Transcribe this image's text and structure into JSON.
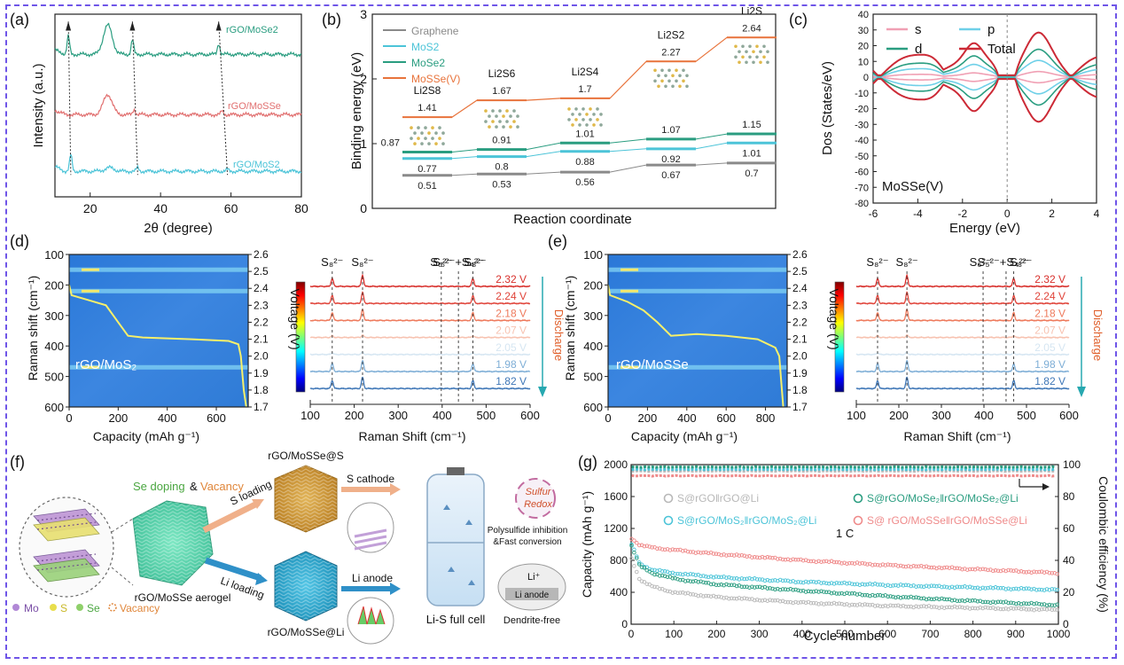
{
  "panels": {
    "a": {
      "label": "(a)",
      "chart_data": {
        "type": "line",
        "xlabel": "2θ (degree)",
        "ylabel": "Intensity (a.u.)",
        "xlim": [
          10,
          80
        ],
        "xticks": [
          20,
          40,
          60,
          80
        ],
        "series": [
          {
            "name": "rGO/MoSe2",
            "color": "#2a9d80",
            "offset": 0.78,
            "peaks": [
              [
                13.8,
                0.1
              ],
              [
                25.0,
                0.16
              ],
              [
                32.0,
                0.08
              ],
              [
                56.5,
                0.06
              ]
            ]
          },
          {
            "name": "rGO/MoSSe",
            "color": "#e17070",
            "offset": 0.45,
            "peaks": [
              [
                25.0,
                0.11
              ],
              [
                32.5,
                0.03
              ],
              [
                57.5,
                0.02
              ]
            ]
          },
          {
            "name": "rGO/MoS2",
            "color": "#4cc4d8",
            "offset": 0.14,
            "peaks": [
              [
                14.5,
                0.09
              ],
              [
                25.5,
                0.02
              ],
              [
                33.5,
                0.02
              ],
              [
                59.0,
                0.01
              ]
            ]
          }
        ],
        "dashed_shifts": [
          [
            13.8,
            14.5
          ],
          [
            32.0,
            33.5
          ],
          [
            56.5,
            59.0
          ]
        ]
      }
    },
    "b": {
      "label": "(b)",
      "chart_data": {
        "type": "line",
        "xlabel": "Reaction coordinate",
        "ylabel": "Binding energy (eV)",
        "ylim": [
          0,
          3
        ],
        "yticks": [
          0,
          1,
          2,
          3
        ],
        "categories": [
          "Li2S8",
          "Li2S6",
          "Li2S4",
          "Li2S2",
          "Li2S"
        ],
        "series": [
          {
            "name": "Graphene",
            "color": "#8a8a8a",
            "values": [
              0.51,
              0.53,
              0.56,
              0.67,
              0.7
            ]
          },
          {
            "name": "MoS2",
            "color": "#4cc4d8",
            "values": [
              0.77,
              0.8,
              0.88,
              0.92,
              1.01
            ]
          },
          {
            "name": "MoSe2",
            "color": "#2a9d80",
            "values": [
              0.87,
              0.91,
              1.01,
              1.07,
              1.15
            ]
          },
          {
            "name": "MoSSe(V)",
            "color": "#e8733b",
            "values": [
              1.41,
              1.67,
              1.7,
              2.27,
              2.64
            ]
          }
        ]
      }
    },
    "c": {
      "label": "(c)",
      "chart_data": {
        "type": "line",
        "xlabel": "Energy (eV)",
        "ylabel": "Dos (States/eV)",
        "xlim": [
          -6,
          4
        ],
        "ylim": [
          -80,
          40
        ],
        "xticks": [
          -6,
          -4,
          -2,
          0,
          2,
          4
        ],
        "yticks": [
          40,
          30,
          20,
          10,
          0,
          -10,
          -20,
          -30,
          -40,
          -50,
          -60,
          -70,
          -80
        ],
        "annotation": "MoSSe(V)",
        "series": [
          {
            "name": "s",
            "color": "#f0a0b4",
            "amp": 3
          },
          {
            "name": "p",
            "color": "#6fd0e8",
            "amp": 9
          },
          {
            "name": "d",
            "color": "#2a9d80",
            "amp": 15
          },
          {
            "name": "Total",
            "color": "#cc2a36",
            "amp": 24
          }
        ]
      }
    },
    "d": {
      "label": "(d)",
      "heatmap": {
        "ylabel": "Raman shift (cm⁻¹)",
        "xlabel": "Capacity (mAh g⁻¹)",
        "right_label": "Voltage (V)",
        "sample": "rGO/MoS₂",
        "xlim": [
          0,
          730
        ],
        "xticks": [
          0,
          200,
          400,
          600
        ],
        "ylim": [
          100,
          600
        ],
        "yticks": [
          100,
          200,
          300,
          400,
          500,
          600
        ],
        "vlim": [
          1.7,
          2.6
        ],
        "vticks": [
          2.6,
          2.5,
          2.4,
          2.3,
          2.2,
          2.1,
          2.0,
          1.9,
          1.8,
          1.7
        ],
        "curve": [
          [
            0,
            2.42
          ],
          [
            10,
            2.36
          ],
          [
            80,
            2.33
          ],
          [
            150,
            2.3
          ],
          [
            200,
            2.2
          ],
          [
            240,
            2.12
          ],
          [
            300,
            2.11
          ],
          [
            500,
            2.1
          ],
          [
            650,
            2.09
          ],
          [
            690,
            2.07
          ],
          [
            700,
            2.0
          ],
          [
            712,
            1.8
          ],
          [
            722,
            1.7
          ]
        ],
        "bands": [
          150,
          220,
          470
        ]
      },
      "spectra": {
        "xlabel": "Raman Shift (cm⁻¹)",
        "xlim": [
          100,
          600
        ],
        "xticks": [
          100,
          200,
          300,
          400,
          500,
          600
        ],
        "peaks": [
          150,
          219,
          398,
          437,
          470
        ],
        "peak_labels": [
          {
            "x": 150,
            "text": "S₈²⁻"
          },
          {
            "x": 219,
            "text": "S₈²⁻"
          },
          {
            "x": 398,
            "text": "S₆²⁻"
          },
          {
            "x": 437,
            "text": "S₅²⁻+S₄²⁻"
          },
          {
            "x": 475,
            "text": "S₈²⁻"
          }
        ],
        "voltages": [
          "2.32 V",
          "2.24 V",
          "2.18 V",
          "2.07 V",
          "2.05 V",
          "1.98 V",
          "1.82 V"
        ],
        "colors": [
          "#d8302c",
          "#e0443a",
          "#ee7a5c",
          "#f7c2b0",
          "#d6e6f2",
          "#7eaed6",
          "#3f77b7"
        ],
        "arrow_label": "Discharge"
      }
    },
    "e": {
      "label": "(e)",
      "heatmap": {
        "ylabel": "Raman shift (cm⁻¹)",
        "xlabel": "Capacity (mAh g⁻¹)",
        "right_label": "Voltage (V)",
        "sample": "rGO/MoSSe",
        "xlim": [
          0,
          910
        ],
        "xticks": [
          0,
          200,
          400,
          600,
          800
        ],
        "ylim": [
          100,
          600
        ],
        "yticks": [
          100,
          200,
          300,
          400,
          500,
          600
        ],
        "vlim": [
          1.7,
          2.6
        ],
        "vticks": [
          2.6,
          2.5,
          2.4,
          2.3,
          2.2,
          2.1,
          2.0,
          1.9,
          1.8,
          1.7
        ],
        "curve": [
          [
            0,
            2.42
          ],
          [
            10,
            2.36
          ],
          [
            100,
            2.32
          ],
          [
            180,
            2.27
          ],
          [
            250,
            2.2
          ],
          [
            320,
            2.12
          ],
          [
            450,
            2.13
          ],
          [
            600,
            2.12
          ],
          [
            760,
            2.1
          ],
          [
            850,
            2.05
          ],
          [
            870,
            2.0
          ],
          [
            880,
            1.85
          ],
          [
            890,
            1.7
          ]
        ],
        "bands": [
          150,
          220,
          470
        ]
      },
      "spectra": {
        "xlabel": "Raman Shift (cm⁻¹)",
        "xlim": [
          100,
          600
        ],
        "xticks": [
          100,
          200,
          300,
          400,
          500,
          600
        ],
        "peaks": [
          150,
          219,
          398,
          452,
          470
        ],
        "peak_labels": [
          {
            "x": 150,
            "text": "S₈²⁻"
          },
          {
            "x": 219,
            "text": "S₈²⁻"
          },
          {
            "x": 392,
            "text": "S₆²⁻"
          },
          {
            "x": 445,
            "text": "S₅²⁻+S₄²⁻"
          },
          {
            "x": 487,
            "text": "S₈²⁻"
          }
        ],
        "voltages": [
          "2.32 V",
          "2.24 V",
          "2.18 V",
          "2.07 V",
          "2.05 V",
          "1.98 V",
          "1.82 V"
        ],
        "colors": [
          "#d8302c",
          "#e0443a",
          "#ee7a5c",
          "#f7c2b0",
          "#d6e6f2",
          "#7eaed6",
          "#3f77b7"
        ],
        "arrow_label": "Discharge"
      }
    },
    "f": {
      "label": "(f)",
      "texts": {
        "top_material": "rGO/MoSSe@S",
        "doping_se": "Se doping",
        "doping_amp": "&",
        "doping_vac": "Vacancy",
        "s_loading": "S loading",
        "li_loading": "Li loading",
        "s_cathode": "S cathode",
        "li_anode": "Li anode",
        "aerogel": "rGO/MoSSe aerogel",
        "bottom_material": "rGO/MoSSe@Li",
        "full_cell": "Li-S full cell",
        "redox_1": "Sulfur",
        "redox_2": "Redox",
        "poly_1": "Polysulfide inhibition",
        "poly_2": "&Fast conversion",
        "li_plus": "Li⁺",
        "li_anode_label": "Li anode",
        "dendrite": "Dendrite-free",
        "legend_mo": "Mo",
        "legend_s": "S",
        "legend_se": "Se",
        "legend_vac": "Vacancy"
      }
    },
    "g": {
      "label": "(g)",
      "chart_data": {
        "type": "scatter",
        "xlabel": "Cycle number",
        "ylabel": "Capacity (mAh g⁻¹)",
        "y2label": "Coulombic efficiency (%)",
        "xlim": [
          0,
          1000
        ],
        "ylim": [
          0,
          2000
        ],
        "y2lim": [
          0,
          100
        ],
        "xticks": [
          0,
          100,
          200,
          300,
          400,
          500,
          600,
          700,
          800,
          900,
          1000
        ],
        "yticks": [
          0,
          400,
          800,
          1200,
          1600,
          2000
        ],
        "y2ticks": [
          0,
          20,
          40,
          60,
          80,
          100
        ],
        "rate_label": "1 C",
        "series": [
          {
            "name": "S@rGO‖rGO@Li",
            "color": "#b8b8b8",
            "capacity": [
              [
                1,
                820
              ],
              [
                20,
                560
              ],
              [
                50,
                470
              ],
              [
                100,
                400
              ],
              [
                200,
                340
              ],
              [
                400,
                270
              ],
              [
                600,
                230
              ],
              [
                800,
                205
              ],
              [
                1000,
                180
              ]
            ],
            "ce": 96
          },
          {
            "name": "S@rGO/MoS₂‖rGO/MoS₂@Li",
            "color": "#4cc4d8",
            "capacity": [
              [
                1,
                1000
              ],
              [
                20,
                760
              ],
              [
                50,
                680
              ],
              [
                100,
                640
              ],
              [
                200,
                590
              ],
              [
                400,
                530
              ],
              [
                600,
                490
              ],
              [
                800,
                460
              ],
              [
                1000,
                430
              ]
            ],
            "ce": 97
          },
          {
            "name": "S@rGO/MoSe₂‖rGO/MoSe₂@Li",
            "color": "#2a9d80",
            "capacity": [
              [
                1,
                980
              ],
              [
                20,
                730
              ],
              [
                50,
                640
              ],
              [
                100,
                570
              ],
              [
                200,
                500
              ],
              [
                400,
                420
              ],
              [
                600,
                350
              ],
              [
                800,
                290
              ],
              [
                1000,
                240
              ]
            ],
            "ce": 98.5
          },
          {
            "name": "S@ rGO/MoSSe‖rGO/MoSSe@Li",
            "color": "#ef8a8a",
            "capacity": [
              [
                1,
                1080
              ],
              [
                20,
                990
              ],
              [
                50,
                960
              ],
              [
                100,
                930
              ],
              [
                200,
                880
              ],
              [
                400,
                800
              ],
              [
                600,
                740
              ],
              [
                800,
                690
              ],
              [
                1000,
                640
              ]
            ],
            "ce": 93
          }
        ]
      }
    }
  }
}
